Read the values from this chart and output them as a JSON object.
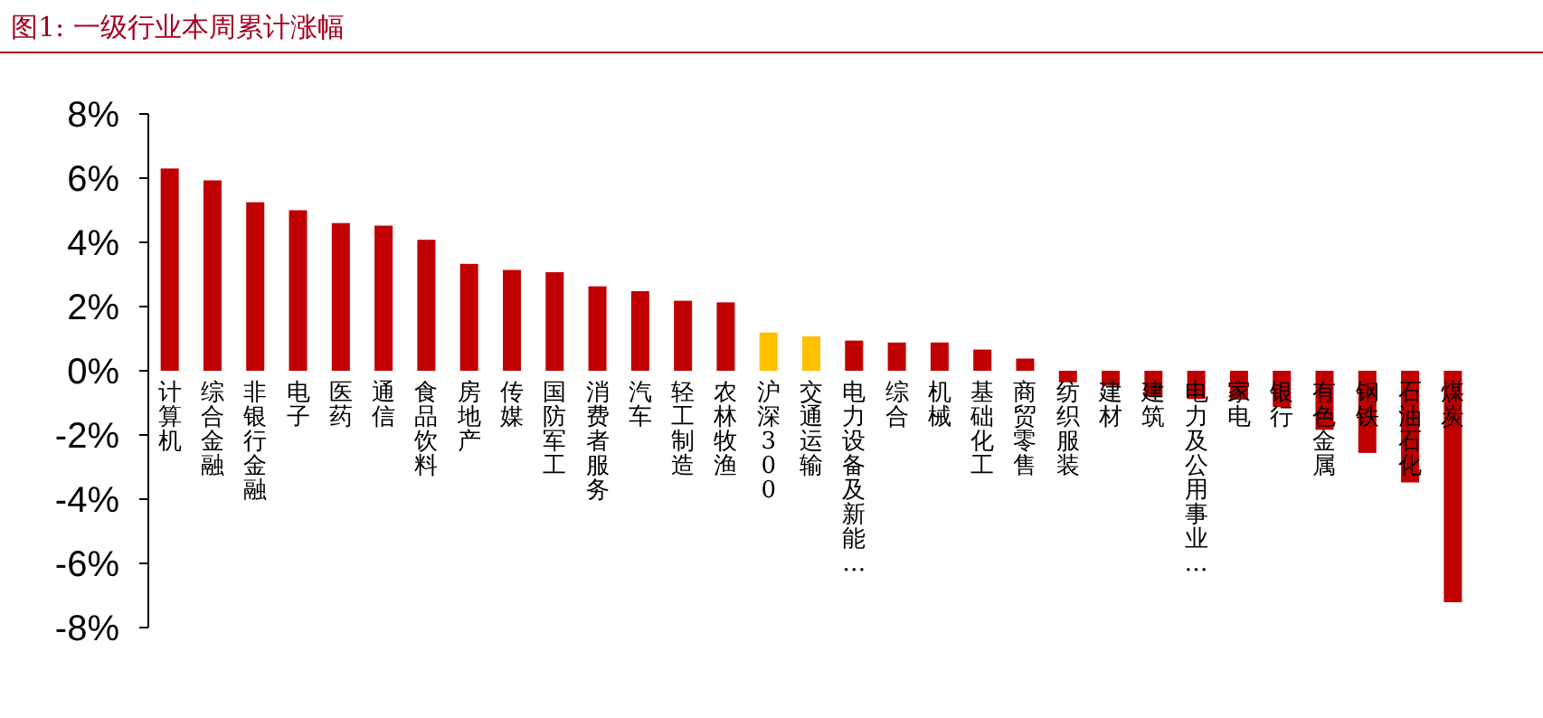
{
  "chart_data": {
    "type": "bar",
    "title": "图1:   一级行业本周累计涨幅",
    "categories": [
      "计算机",
      "综合金融",
      "非银行金融",
      "电子",
      "医药",
      "通信",
      "食品饮料",
      "房地产",
      "传媒",
      "国防军工",
      "消费者服务",
      "汽车",
      "轻工制造",
      "农林牧渔",
      "沪深300",
      "交通运输",
      "电力设备及新能…",
      "综合",
      "机械",
      "基础化工",
      "商贸零售",
      "纺织服装",
      "建材",
      "建筑",
      "电力及公用事业…",
      "家电",
      "银行",
      "有色金属",
      "钢铁",
      "石油石化",
      "煤炭"
    ],
    "values": [
      6.3,
      5.93,
      5.25,
      5.0,
      4.6,
      4.52,
      4.08,
      3.33,
      3.14,
      3.07,
      2.63,
      2.48,
      2.18,
      2.13,
      1.19,
      1.07,
      0.94,
      0.88,
      0.88,
      0.66,
      0.38,
      -0.36,
      -0.47,
      -0.81,
      -0.88,
      -0.9,
      -1.13,
      -1.84,
      -2.56,
      -3.48,
      -7.21
    ],
    "colors": [
      "#c00000",
      "#c00000",
      "#c00000",
      "#c00000",
      "#c00000",
      "#c00000",
      "#c00000",
      "#c00000",
      "#c00000",
      "#c00000",
      "#c00000",
      "#c00000",
      "#c00000",
      "#c00000",
      "#ffc000",
      "#ffc000",
      "#c00000",
      "#c00000",
      "#c00000",
      "#c00000",
      "#c00000",
      "#c00000",
      "#c00000",
      "#c00000",
      "#c00000",
      "#c00000",
      "#c00000",
      "#c00000",
      "#c00000",
      "#c00000",
      "#c00000"
    ],
    "ylim": [
      -8,
      8
    ],
    "yticks": [
      {
        "value": -8,
        "label": "-8%"
      },
      {
        "value": -6,
        "label": "-6%"
      },
      {
        "value": -4,
        "label": "-4%"
      },
      {
        "value": -2,
        "label": "-2%"
      },
      {
        "value": 0,
        "label": "0%"
      },
      {
        "value": 2,
        "label": "2%"
      },
      {
        "value": 4,
        "label": "4%"
      },
      {
        "value": 6,
        "label": "6%"
      },
      {
        "value": 8,
        "label": "8%"
      }
    ],
    "grid": false
  }
}
